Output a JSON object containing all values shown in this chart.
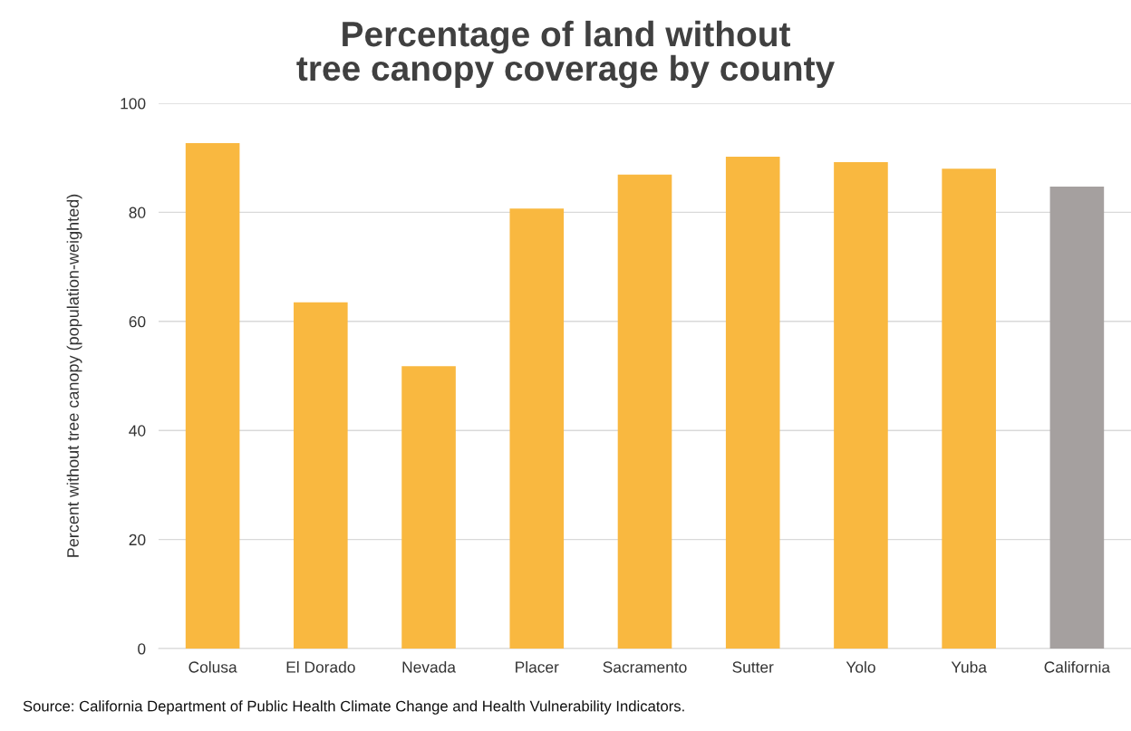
{
  "chart_data": {
    "type": "bar",
    "title": "Percentage of land without\ntree canopy coverage by county",
    "ylabel": "Percent without tree canopy (population-weighted)",
    "categories": [
      "Colusa",
      "El Dorado",
      "Nevada",
      "Placer",
      "Sacramento",
      "Sutter",
      "Yolo",
      "Yuba",
      "California"
    ],
    "values": [
      92.7,
      63.5,
      51.8,
      80.7,
      86.9,
      90.2,
      89.2,
      88.0,
      84.7
    ],
    "colors": [
      "#f9b840",
      "#f9b840",
      "#f9b840",
      "#f9b840",
      "#f9b840",
      "#f9b840",
      "#f9b840",
      "#f9b840",
      "#a5a09f"
    ],
    "ylim": [
      0,
      100
    ],
    "yticks": [
      0,
      20,
      40,
      60,
      80,
      100
    ],
    "grid": "y",
    "legend": false,
    "annotations": [
      "Source: California Department of Public Health Climate Change and Health Vulnerability Indicators."
    ]
  }
}
